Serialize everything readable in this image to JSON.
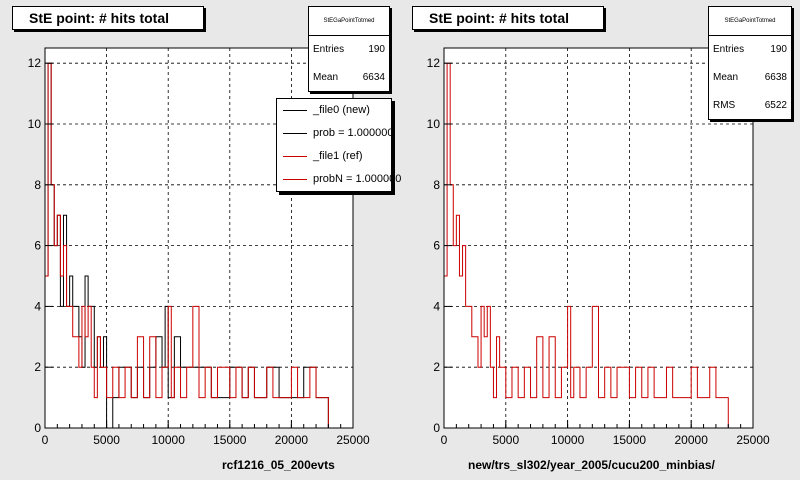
{
  "chart_data": [
    {
      "type": "histogram",
      "title": "StE point: # hits total",
      "xlabel": "rcf1216_05_200evts",
      "xlim": [
        0,
        25000
      ],
      "ylim": [
        0,
        12.5
      ],
      "xticks": [
        0,
        5000,
        10000,
        15000,
        20000,
        25000
      ],
      "yticks": [
        0,
        2,
        4,
        6,
        8,
        10,
        12
      ],
      "grid": true,
      "stats": {
        "name": "StEGaPointTotmed",
        "entries_label": "Entries",
        "entries": "190",
        "mean_label": "Mean",
        "mean": "6634"
      },
      "legend": {
        "placement": "top-right",
        "entries": [
          "_file0 (new)",
          "prob = 1.000000",
          "_file1 (ref)",
          "probN = 1.000000"
        ]
      },
      "series": [
        {
          "name": "_file0 (new)",
          "color": "#000000",
          "values": [
            [
              0,
              5
            ],
            [
              250,
              12
            ],
            [
              500,
              8
            ],
            [
              750,
              6
            ],
            [
              1000,
              7
            ],
            [
              1250,
              4
            ],
            [
              1500,
              7
            ],
            [
              1750,
              4
            ],
            [
              2000,
              5
            ],
            [
              2250,
              4
            ],
            [
              2750,
              3
            ],
            [
              3000,
              2
            ],
            [
              3250,
              5
            ],
            [
              3500,
              4
            ],
            [
              4000,
              2
            ],
            [
              4250,
              3
            ],
            [
              4500,
              2
            ],
            [
              4750,
              3
            ],
            [
              5000,
              0
            ],
            [
              5500,
              1
            ],
            [
              6000,
              2
            ],
            [
              7000,
              1
            ],
            [
              7500,
              2
            ],
            [
              8000,
              1
            ],
            [
              8500,
              2
            ],
            [
              9000,
              3
            ],
            [
              9500,
              2
            ],
            [
              9750,
              4
            ],
            [
              10000,
              1
            ],
            [
              10500,
              3
            ],
            [
              11000,
              2
            ],
            [
              12000,
              2
            ],
            [
              13000,
              2
            ],
            [
              13500,
              1
            ],
            [
              14000,
              1
            ],
            [
              15000,
              2
            ],
            [
              16000,
              1
            ],
            [
              16500,
              2
            ],
            [
              17000,
              1
            ],
            [
              17500,
              1
            ],
            [
              18000,
              2
            ],
            [
              19000,
              1
            ],
            [
              20000,
              1
            ],
            [
              21000,
              2
            ],
            [
              22000,
              1
            ],
            [
              23000,
              0
            ]
          ]
        },
        {
          "name": "_file1 (ref)",
          "color": "#cc0000",
          "values": [
            [
              0,
              5
            ],
            [
              250,
              12
            ],
            [
              500,
              8
            ],
            [
              750,
              6
            ],
            [
              1000,
              7
            ],
            [
              1250,
              5
            ],
            [
              1500,
              6
            ],
            [
              1750,
              4
            ],
            [
              2000,
              4
            ],
            [
              2250,
              3
            ],
            [
              2750,
              2
            ],
            [
              3000,
              4
            ],
            [
              3250,
              3
            ],
            [
              3500,
              4
            ],
            [
              3750,
              2
            ],
            [
              4000,
              1
            ],
            [
              4250,
              3
            ],
            [
              4500,
              2
            ],
            [
              5000,
              1
            ],
            [
              5500,
              2
            ],
            [
              6000,
              1
            ],
            [
              6500,
              2
            ],
            [
              7000,
              1
            ],
            [
              7500,
              3
            ],
            [
              8000,
              1
            ],
            [
              8500,
              3
            ],
            [
              9000,
              1
            ],
            [
              9500,
              2
            ],
            [
              10000,
              4
            ],
            [
              10250,
              1
            ],
            [
              10500,
              2
            ],
            [
              11000,
              1
            ],
            [
              11500,
              2
            ],
            [
              12000,
              4
            ],
            [
              12500,
              1
            ],
            [
              13000,
              2
            ],
            [
              13500,
              1
            ],
            [
              14000,
              2
            ],
            [
              14500,
              2
            ],
            [
              15000,
              1
            ],
            [
              15500,
              2
            ],
            [
              16000,
              1
            ],
            [
              16500,
              2
            ],
            [
              17000,
              1
            ],
            [
              17500,
              1
            ],
            [
              18000,
              2
            ],
            [
              18500,
              1
            ],
            [
              19000,
              1
            ],
            [
              19500,
              1
            ],
            [
              20000,
              2
            ],
            [
              20500,
              1
            ],
            [
              21000,
              1
            ],
            [
              21500,
              2
            ],
            [
              22000,
              1
            ],
            [
              23000,
              0
            ]
          ]
        }
      ]
    },
    {
      "type": "histogram",
      "title": "StE point: # hits total",
      "xlabel": "new/trs_sl302/year_2005/cucu200_minbias/",
      "xlim": [
        0,
        25000
      ],
      "ylim": [
        0,
        12.5
      ],
      "xticks": [
        0,
        5000,
        10000,
        15000,
        20000,
        25000
      ],
      "yticks": [
        0,
        2,
        4,
        6,
        8,
        10,
        12
      ],
      "grid": true,
      "stats": {
        "name": "StEGaPointTotmed",
        "entries_label": "Entries",
        "entries": "190",
        "mean_label": "Mean",
        "mean": "6638",
        "rms_label": "RMS",
        "rms": "6522"
      },
      "series": [
        {
          "name": "",
          "color": "#cc0000",
          "values": [
            [
              0,
              5
            ],
            [
              250,
              12
            ],
            [
              500,
              8
            ],
            [
              750,
              6
            ],
            [
              1000,
              7
            ],
            [
              1250,
              5
            ],
            [
              1500,
              6
            ],
            [
              1750,
              4
            ],
            [
              2000,
              4
            ],
            [
              2250,
              3
            ],
            [
              2750,
              2
            ],
            [
              3000,
              4
            ],
            [
              3250,
              3
            ],
            [
              3500,
              4
            ],
            [
              3750,
              2
            ],
            [
              4000,
              1
            ],
            [
              4250,
              3
            ],
            [
              4500,
              2
            ],
            [
              5000,
              1
            ],
            [
              5500,
              2
            ],
            [
              6000,
              1
            ],
            [
              6500,
              2
            ],
            [
              7000,
              1
            ],
            [
              7500,
              3
            ],
            [
              8000,
              1
            ],
            [
              8500,
              3
            ],
            [
              9000,
              1
            ],
            [
              9500,
              2
            ],
            [
              10000,
              4
            ],
            [
              10250,
              1
            ],
            [
              10500,
              2
            ],
            [
              11000,
              1
            ],
            [
              11500,
              2
            ],
            [
              12000,
              4
            ],
            [
              12500,
              1
            ],
            [
              13000,
              2
            ],
            [
              13500,
              1
            ],
            [
              14000,
              2
            ],
            [
              14500,
              2
            ],
            [
              15000,
              1
            ],
            [
              15500,
              2
            ],
            [
              16000,
              1
            ],
            [
              16500,
              2
            ],
            [
              17000,
              1
            ],
            [
              17500,
              1
            ],
            [
              18000,
              2
            ],
            [
              18500,
              1
            ],
            [
              19000,
              1
            ],
            [
              19500,
              1
            ],
            [
              20000,
              2
            ],
            [
              20500,
              1
            ],
            [
              21000,
              1
            ],
            [
              21500,
              2
            ],
            [
              22000,
              1
            ],
            [
              23000,
              0
            ]
          ]
        }
      ]
    }
  ]
}
